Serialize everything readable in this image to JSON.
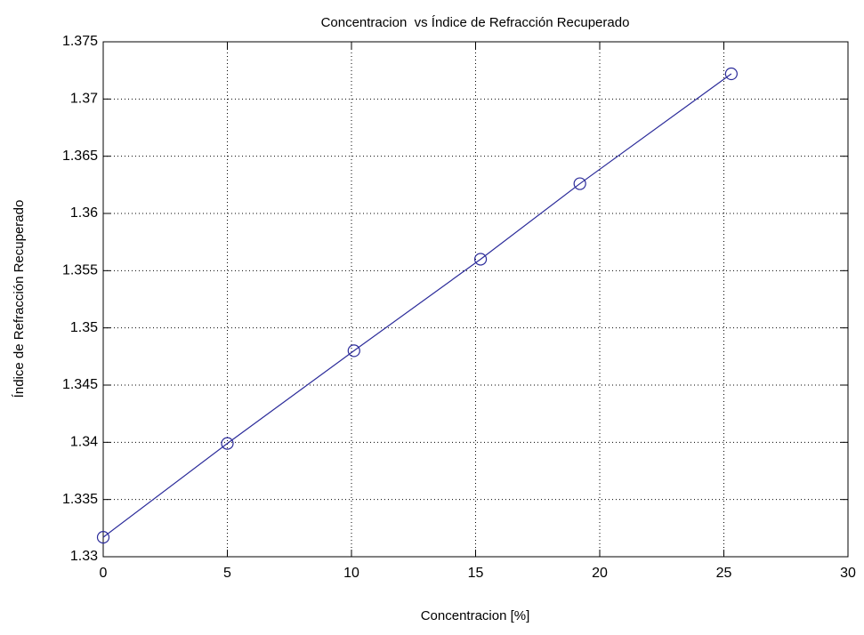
{
  "chart_data": {
    "type": "line",
    "title": "Concentracion  vs Índice de Refracción Recuperado",
    "x_label": "Concentracion [%]",
    "y_label": "Índice de Refracción Recuperado",
    "x": [
      0,
      5,
      10.1,
      15.2,
      19.2,
      25.3
    ],
    "series": [
      {
        "color": "#2b2b9a",
        "marker": "circle",
        "values": [
          1.3317,
          1.3399,
          1.348,
          1.356,
          1.3626,
          1.3722
        ]
      }
    ],
    "xlim": [
      0,
      30
    ],
    "xticks": [
      0,
      5,
      10,
      15,
      20,
      25,
      30
    ],
    "ylim": [
      1.33,
      1.375
    ],
    "yticks": [
      1.33,
      1.335,
      1.34,
      1.345,
      1.35,
      1.355,
      1.36,
      1.365,
      1.37,
      1.375
    ],
    "grid": true
  }
}
